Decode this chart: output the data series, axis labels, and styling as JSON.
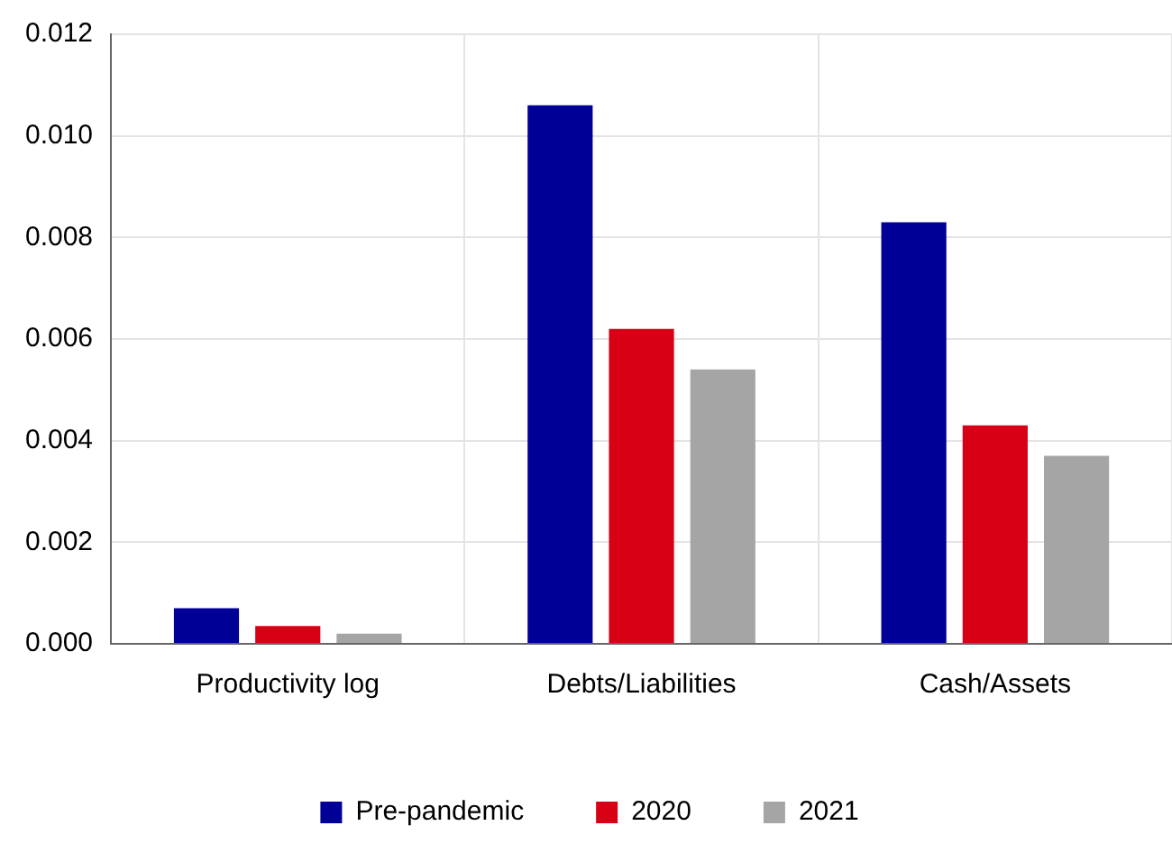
{
  "chart_data": {
    "type": "bar",
    "categories": [
      "Productivity log",
      "Debts/Liabilities",
      "Cash/Assets"
    ],
    "series": [
      {
        "name": "Pre-pandemic",
        "color": "#000096",
        "values": [
          0.0007,
          0.0106,
          0.0083
        ]
      },
      {
        "name": "2020",
        "color": "#d70014",
        "values": [
          0.00035,
          0.0062,
          0.0043
        ]
      },
      {
        "name": "2021",
        "color": "#a5a5a5",
        "values": [
          0.0002,
          0.0054,
          0.0037
        ]
      }
    ],
    "ylim": [
      0,
      0.012
    ],
    "yticks": [
      {
        "value": 0,
        "label": "0.000"
      },
      0.002,
      0.004,
      0.006,
      0.008,
      {
        "value": 0.01,
        "label": "0.010"
      },
      0.012
    ],
    "grid": true,
    "legend": "bottom"
  }
}
